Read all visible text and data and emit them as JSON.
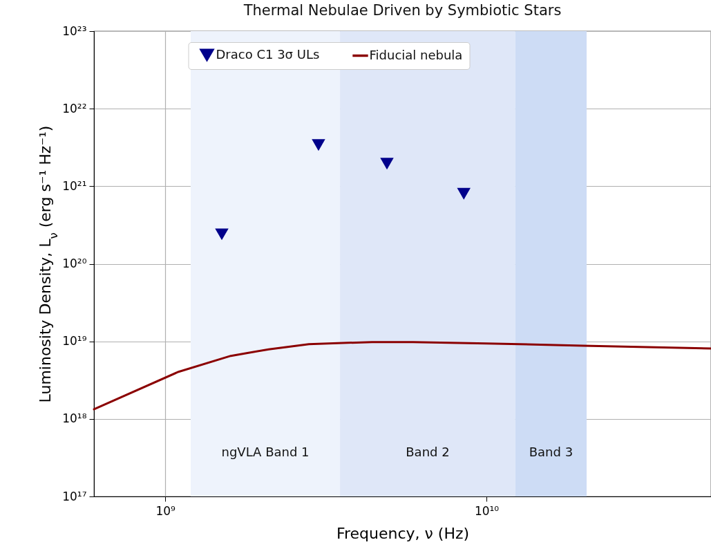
{
  "chart_data": {
    "type": "line",
    "title": "Thermal Nebulae Driven by Symbiotic Stars",
    "xlabel": "Frequency, ν (Hz)",
    "ylabel": "Luminosity Density, L$_{ν}$ (erg s⁻¹ Hz⁻¹)",
    "log": "xy",
    "grid": true,
    "legend": "top",
    "xlim": [
      600000000.0,
      50000000000.0
    ],
    "xticks": [
      {
        "value": 1000000000.0,
        "label": "10⁹"
      },
      {
        "value": 10000000000.0,
        "label": "10¹⁰"
      }
    ],
    "ylim": [
      1e+17,
      1e+23
    ],
    "yticks": [
      {
        "value": 1e+17,
        "label": "10¹⁷"
      },
      {
        "value": 1e+18,
        "label": "10¹⁸"
      },
      {
        "value": 1e+19,
        "label": "10¹⁹"
      },
      {
        "value": 1e+20,
        "label": "10²⁰"
      },
      {
        "value": 1e+21,
        "label": "10²¹"
      },
      {
        "value": 1e+22,
        "label": "10²²"
      },
      {
        "value": 1e+23,
        "label": "10²³"
      }
    ],
    "series": [
      {
        "name": "Draco C1 3σ ULs",
        "type": "scatter",
        "marker": "triangle",
        "color": "#00008b",
        "x": [
          1500000000.0,
          3000000000.0,
          4900000000.0,
          8500000000.0
        ],
        "values": [
          2.4e+20,
          3.4e+21,
          1.95e+21,
          8e+20
        ]
      },
      {
        "name": "Fiducial nebula",
        "line_style": "solid",
        "color": "#8b0000",
        "x": [
          600000000.0,
          1100000000.0,
          1600000000.0,
          2100000000.0,
          2800000000.0,
          4400000000.0,
          5900000000.0,
          10000000000.0,
          20000000000.0,
          50000000000.0
        ],
        "values": [
          1.33e+18,
          4.05e+18,
          6.5e+18,
          7.9e+18,
          9.2e+18,
          9.8e+18,
          9.8e+18,
          9.4e+18,
          8.8e+18,
          8.1e+18
        ]
      }
    ],
    "bands": [
      {
        "axis": "x",
        "from": 1200000000.0,
        "to": 3500000000.0,
        "label": "ngVLA Band 1",
        "color": "#eef3fc"
      },
      {
        "axis": "x",
        "from": 3500000000.0,
        "to": 12300000000.0,
        "label": "Band 2",
        "color": "#dfe7f8"
      },
      {
        "axis": "x",
        "from": 12300000000.0,
        "to": 20500000000.0,
        "label": "Band 3",
        "color": "#cddcf5"
      }
    ]
  }
}
